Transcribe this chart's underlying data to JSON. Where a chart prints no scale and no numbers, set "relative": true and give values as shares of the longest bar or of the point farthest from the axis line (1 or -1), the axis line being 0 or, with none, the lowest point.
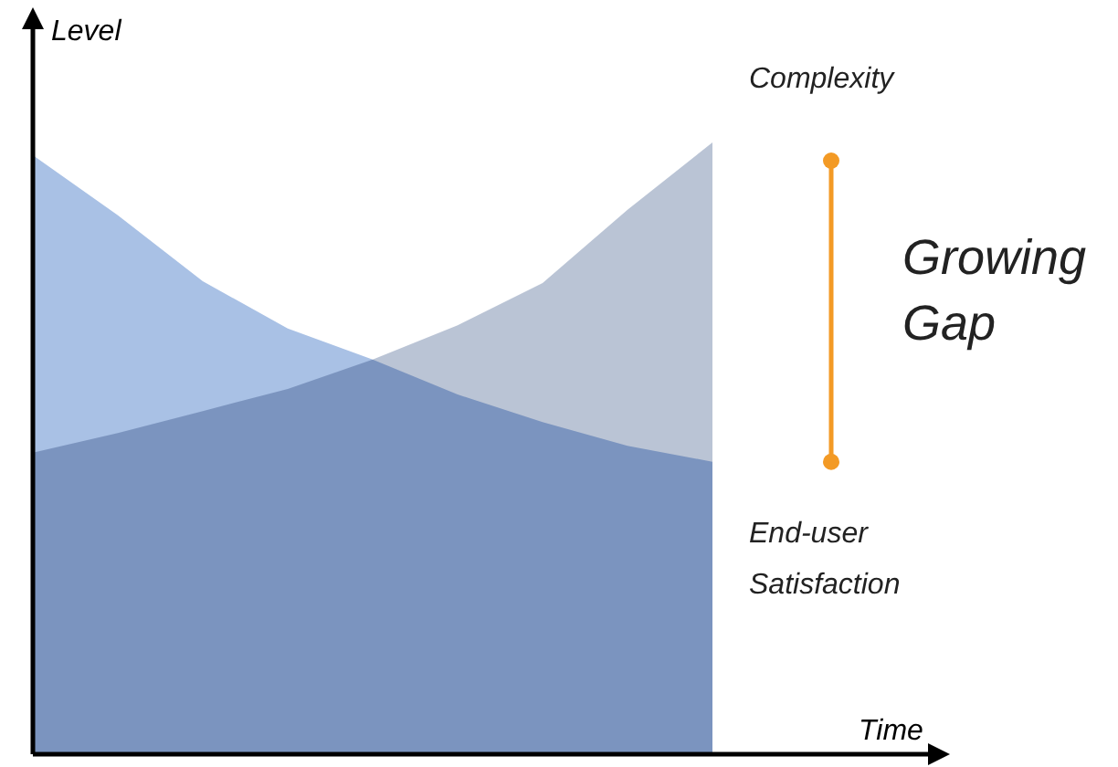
{
  "chart_data": {
    "type": "area",
    "relative": true,
    "xlabel": "Time",
    "ylabel": "Level",
    "categories": [
      null,
      null,
      null,
      null,
      null,
      null,
      null,
      null,
      null
    ],
    "series": [
      {
        "name": "End-user Satisfaction",
        "color": "#a9c1e5",
        "values": [
          0.979,
          0.881,
          0.773,
          0.696,
          0.645,
          0.588,
          0.543,
          0.504,
          0.478
        ]
      },
      {
        "name": "Complexity",
        "color": "#a3b0c7",
        "values": [
          0.493,
          0.525,
          0.561,
          0.597,
          0.645,
          0.701,
          0.77,
          0.89,
          1
        ]
      }
    ],
    "annotations": [
      "Growing Gap"
    ]
  }
}
